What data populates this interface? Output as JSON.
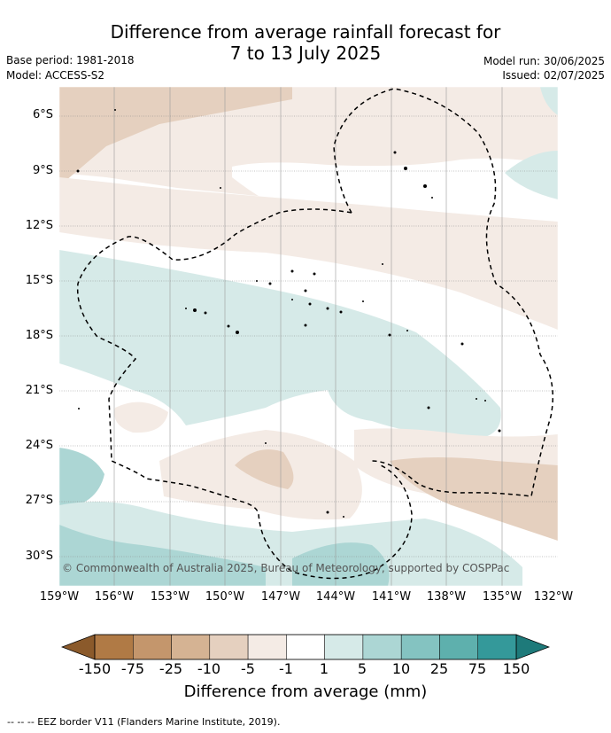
{
  "title_line1": "Difference from average rainfall forecast for",
  "title_line2": "7 to 13 July 2025",
  "base_period": "Base period: 1981-2018",
  "model": "Model: ACCESS-S2",
  "model_run": "Model run: 30/06/2025",
  "issued": "Issued: 02/07/2025",
  "copyright": "© Commonwealth of Australia 2025, Bureau of Meteorology, supported by COSPPac",
  "lat_labels": [
    "6°S",
    "9°S",
    "12°S",
    "15°S",
    "18°S",
    "21°S",
    "24°S",
    "27°S",
    "30°S"
  ],
  "lon_labels": [
    "159°W",
    "156°W",
    "153°W",
    "150°W",
    "147°W",
    "144°W",
    "141°W",
    "138°W",
    "135°W",
    "132°W"
  ],
  "colorbar": {
    "title": "Difference from average (mm)",
    "ticks": [
      "-150",
      "-75",
      "-25",
      "-10",
      "-5",
      "-1",
      "1",
      "5",
      "10",
      "25",
      "75",
      "150"
    ],
    "colors": [
      "#8b5a2b",
      "#b07a45",
      "#c4966c",
      "#d5b393",
      "#e5d0bf",
      "#f4ebe5",
      "#ffffff",
      "#d6eae8",
      "#acd6d4",
      "#84c3c1",
      "#5eb0ad",
      "#34999a",
      "#1e7a7a"
    ]
  },
  "footnote": "--  --  -- EEZ border V11 (Flanders Marine Institute, 2019)."
}
